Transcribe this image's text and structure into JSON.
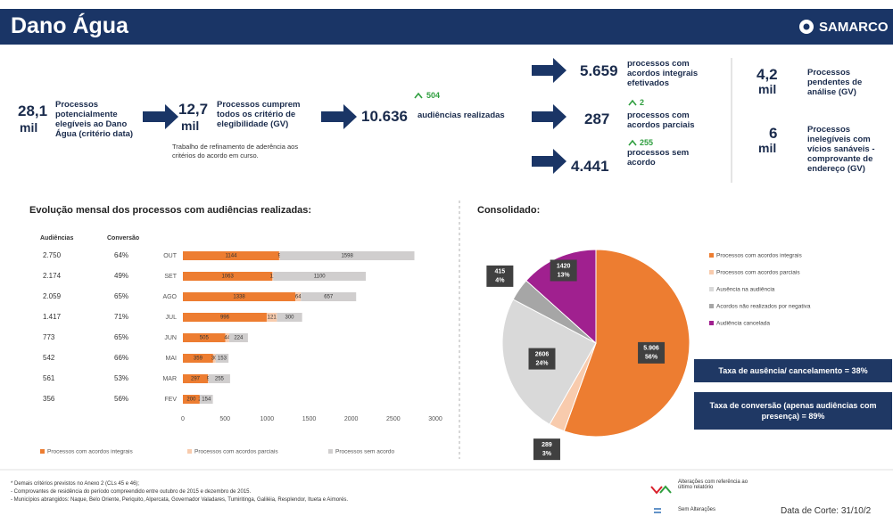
{
  "header": {
    "title": "Dano Água",
    "logo": "SAMARCO"
  },
  "kpis": {
    "elegiveis": {
      "value": "28,1",
      "unit": "mil",
      "text": "Processos potencialmente elegíveis ao Dano Água (critério data)"
    },
    "cumprem": {
      "value": "12,7",
      "unit": "mil",
      "text": "Processos cumprem todos os critério de elegibilidade (GV)",
      "note": "Trabalho de refinamento de aderência aos critérios do acordo em curso."
    },
    "audiencias": {
      "change": "504",
      "value": "10.636",
      "text": "audiências realizadas"
    },
    "integrais": {
      "value": "5.659",
      "text": "processos com acordos integrais efetivados"
    },
    "parciais": {
      "change": "2",
      "value": "287",
      "text": "processos com acordos parciais"
    },
    "sem_acordo": {
      "change": "255",
      "value": "4.441",
      "text": "processos sem acordo"
    },
    "pendentes": {
      "value": "4,2",
      "unit": "mil",
      "text": "Processos pendentes de análise (GV)"
    },
    "inelegiveis": {
      "value": "6",
      "unit": "mil",
      "text": "Processos inelegíveis com vícios sanáveis - comprovante de endereço (GV)"
    }
  },
  "chart_data": [
    {
      "type": "bar",
      "orientation": "horizontal",
      "stacked": true,
      "title": "Evolução mensal dos processos com audiências realizadas:",
      "columns": [
        "Audiências",
        "Conversão"
      ],
      "audiencias": [
        "2.750",
        "2.174",
        "2.059",
        "1.417",
        "773",
        "542",
        "561",
        "356"
      ],
      "conversao": [
        "64%",
        "49%",
        "65%",
        "71%",
        "65%",
        "66%",
        "53%",
        "56%"
      ],
      "categories": [
        "OUT",
        "SET",
        "AGO",
        "JUL",
        "JUN",
        "MAI",
        "MAR",
        "FEV"
      ],
      "series": [
        {
          "name": "Processos com acordos integrais",
          "color": "#ed7d31",
          "values": [
            1144,
            1063,
            1338,
            996,
            505,
            359,
            297,
            200
          ]
        },
        {
          "name": "Processos com acordos parciais",
          "color": "#f8cbad",
          "values": [
            9,
            11,
            64,
            121,
            44,
            30,
            9,
            2
          ]
        },
        {
          "name": "Processos sem acordo",
          "color": "#d0cece",
          "values": [
            1598,
            1100,
            657,
            300,
            224,
            153,
            255,
            154
          ]
        }
      ],
      "xlim": [
        0,
        3000
      ],
      "xticks": [
        0,
        500,
        1000,
        1500,
        2000,
        2500,
        3000
      ],
      "legend": "bottom"
    },
    {
      "type": "pie",
      "title": "Consolidado:",
      "categories": [
        "Processos com acordos integrais",
        "Processos com acordos parciais",
        "Ausência na audiência",
        "Acordos não realizados por negativa",
        "Audiência cancelada"
      ],
      "colors": [
        "#ed7d31",
        "#f8cbad",
        "#d9d9d9",
        "#a6a6a6",
        "#a0208f"
      ],
      "values": [
        5906,
        289,
        2606,
        415,
        1420
      ],
      "value_labels": [
        "5.906",
        "289",
        "2606",
        "415",
        "1420"
      ],
      "percents": [
        56,
        3,
        24,
        4,
        13
      ],
      "percent_labels": [
        "56%",
        "3%",
        "24%",
        "4%",
        "13%"
      ],
      "legend": "right"
    }
  ],
  "rates": [
    "Taxa de ausência/ cancelamento = 38%",
    "Taxa de conversão (apenas audiências com presença) = 89%"
  ],
  "footer": {
    "notes": [
      "* Demais critérios previstos no Anexo 2 (CLs 45 e 46);",
      "- Comprovantes de residência do período compreendido entre outubro de 2015 e dezembro de 2015.",
      "- Municípios abrangidos: Naque, Belo Oriente, Periquito, Alpercata, Governador Valadares, Tumiritinga, Galiléia, Resplendor, Itueta e Aimorés."
    ],
    "legend": [
      "Alterações com referência ao último relatório",
      "Sem Alterações"
    ],
    "date": "Data de Corte: 31/10/2"
  }
}
